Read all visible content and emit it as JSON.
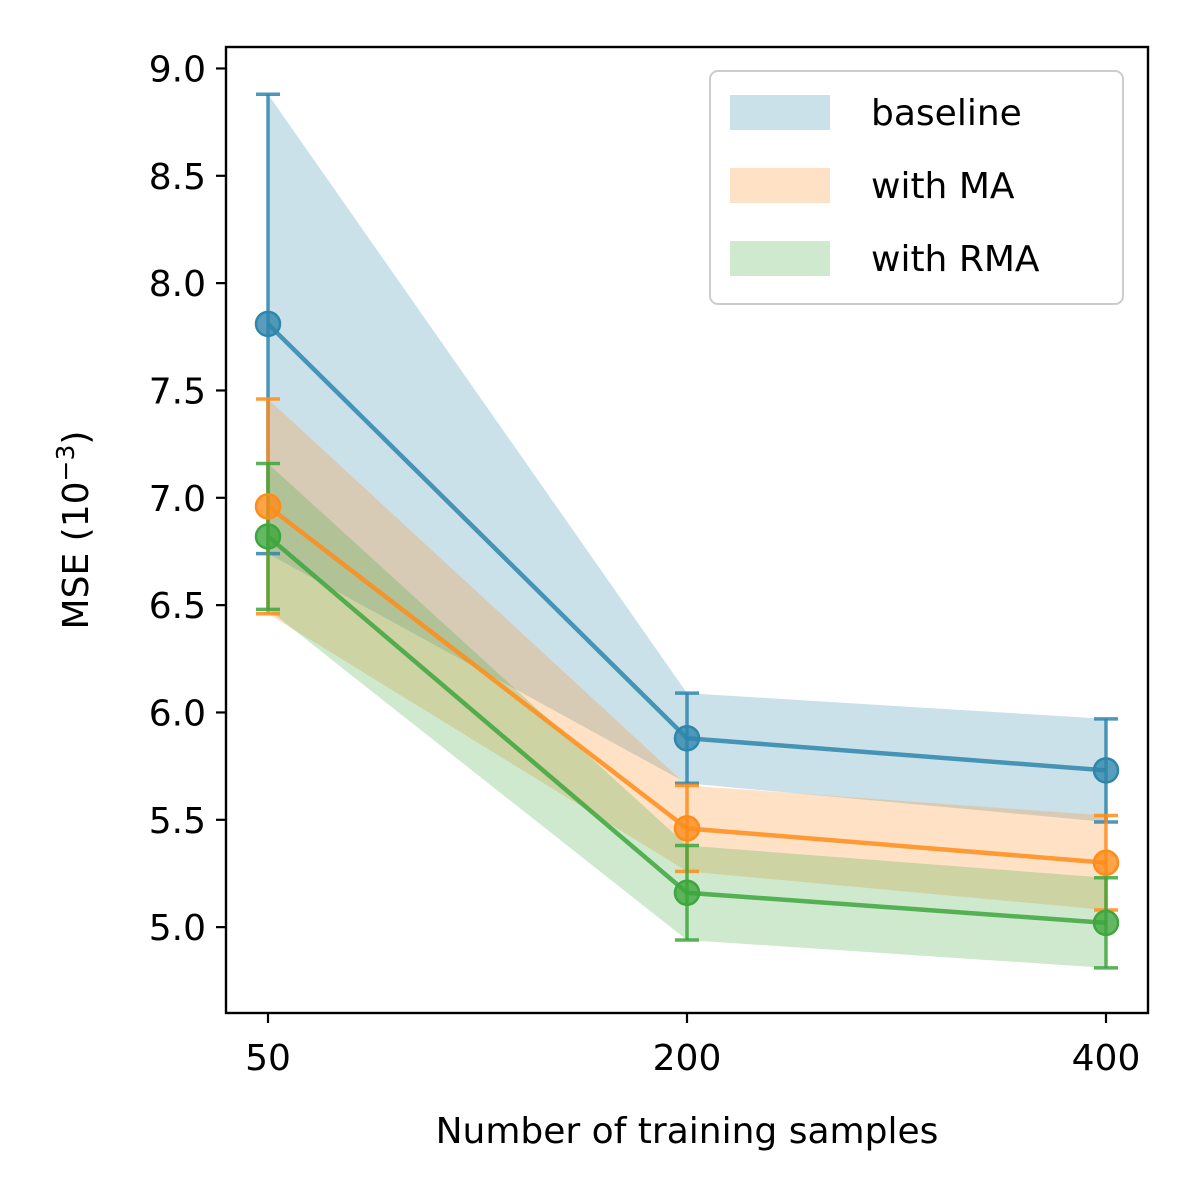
{
  "chart_data": {
    "type": "line",
    "title": "",
    "xlabel": "Number of training samples",
    "ylabel": "MSE (10",
    "ylabel_exponent": "−3",
    "ylabel_close": ")",
    "x": [
      50,
      200,
      400
    ],
    "x_ticks": [
      "50",
      "200",
      "400"
    ],
    "ylim": [
      4.6,
      9.1
    ],
    "y_ticks": [
      5.0,
      5.5,
      6.0,
      6.5,
      7.0,
      7.5,
      8.0,
      8.5,
      9.0
    ],
    "y_tick_labels": [
      "5.0",
      "5.5",
      "6.0",
      "6.5",
      "7.0",
      "7.5",
      "8.0",
      "8.5",
      "9.0"
    ],
    "legend_position": "upper right",
    "series": [
      {
        "name": "baseline",
        "color": "#2E86AB",
        "values": [
          7.81,
          5.88,
          5.73
        ],
        "lower": [
          6.74,
          5.67,
          5.49
        ],
        "upper": [
          8.88,
          6.09,
          5.97
        ]
      },
      {
        "name": "with MA",
        "color": "#FF8C1A",
        "values": [
          6.96,
          5.46,
          5.3
        ],
        "lower": [
          6.46,
          5.26,
          5.08
        ],
        "upper": [
          7.46,
          5.66,
          5.52
        ]
      },
      {
        "name": "with RMA",
        "color": "#3DA63D",
        "values": [
          6.82,
          5.16,
          5.02
        ],
        "lower": [
          6.48,
          4.94,
          4.81
        ],
        "upper": [
          7.16,
          5.38,
          5.23
        ]
      }
    ]
  }
}
